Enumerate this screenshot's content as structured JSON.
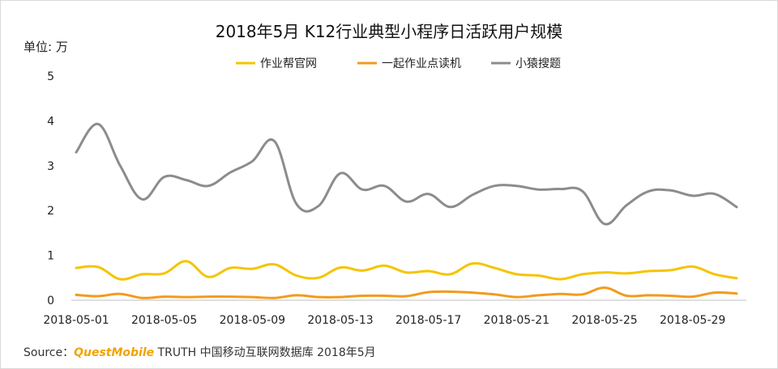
{
  "title": "2018年5月 K12行业典型小程序日活跃用户规模",
  "unit_label": "单位: 万",
  "source": {
    "prefix": "Source：",
    "brand": "QuestMobile",
    "suffix": " TRUTH 中国移动互联网数据库 2018年5月"
  },
  "chart_data": {
    "type": "line",
    "title": "2018年5月 K12行业典型小程序日活跃用户规模",
    "ylabel": "单位: 万",
    "xlabel": "",
    "ylim": [
      0,
      5
    ],
    "yticks": [
      0,
      1,
      2,
      3,
      4,
      5
    ],
    "xtick_labels": [
      "2018-05-01",
      "2018-05-05",
      "2018-05-09",
      "2018-05-13",
      "2018-05-17",
      "2018-05-21",
      "2018-05-25",
      "2018-05-29"
    ],
    "x": [
      "2018-05-01",
      "2018-05-02",
      "2018-05-03",
      "2018-05-04",
      "2018-05-05",
      "2018-05-06",
      "2018-05-07",
      "2018-05-08",
      "2018-05-09",
      "2018-05-10",
      "2018-05-11",
      "2018-05-12",
      "2018-05-13",
      "2018-05-14",
      "2018-05-15",
      "2018-05-16",
      "2018-05-17",
      "2018-05-18",
      "2018-05-19",
      "2018-05-20",
      "2018-05-21",
      "2018-05-22",
      "2018-05-23",
      "2018-05-24",
      "2018-05-25",
      "2018-05-26",
      "2018-05-27",
      "2018-05-28",
      "2018-05-29",
      "2018-05-30",
      "2018-05-31"
    ],
    "grid": false,
    "legend_position": "top-center",
    "series": [
      {
        "name": "作业帮官网",
        "color": "#F5C400",
        "values": [
          0.72,
          0.74,
          0.47,
          0.58,
          0.6,
          0.87,
          0.52,
          0.72,
          0.7,
          0.8,
          0.55,
          0.5,
          0.73,
          0.66,
          0.77,
          0.62,
          0.65,
          0.58,
          0.82,
          0.72,
          0.58,
          0.55,
          0.47,
          0.58,
          0.62,
          0.6,
          0.65,
          0.67,
          0.75,
          0.58,
          0.49
        ]
      },
      {
        "name": "一起作业点读机",
        "color": "#F29B1E",
        "values": [
          0.12,
          0.09,
          0.14,
          0.05,
          0.08,
          0.07,
          0.08,
          0.08,
          0.07,
          0.05,
          0.11,
          0.07,
          0.07,
          0.1,
          0.1,
          0.09,
          0.18,
          0.19,
          0.17,
          0.13,
          0.07,
          0.11,
          0.14,
          0.13,
          0.28,
          0.1,
          0.11,
          0.1,
          0.08,
          0.17,
          0.15
        ]
      },
      {
        "name": "小猿搜题",
        "color": "#8C8C8C",
        "values": [
          3.3,
          3.93,
          3.0,
          2.25,
          2.75,
          2.68,
          2.55,
          2.85,
          3.1,
          3.55,
          2.15,
          2.1,
          2.83,
          2.47,
          2.55,
          2.2,
          2.37,
          2.08,
          2.35,
          2.55,
          2.55,
          2.47,
          2.48,
          2.43,
          1.7,
          2.12,
          2.43,
          2.45,
          2.33,
          2.37,
          2.08
        ]
      }
    ]
  }
}
